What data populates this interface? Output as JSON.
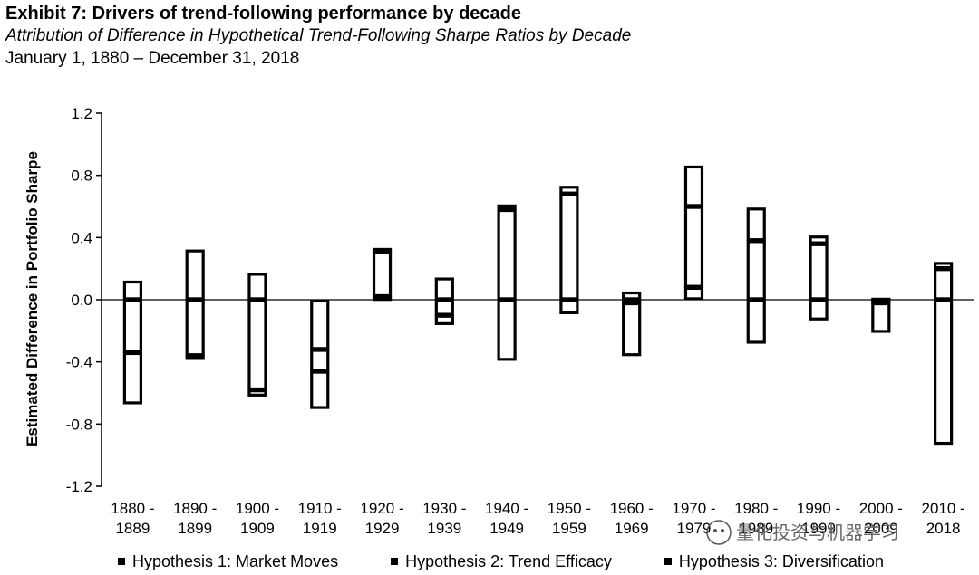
{
  "header": {
    "title": "Exhibit 7: Drivers of trend-following performance by decade",
    "subtitle": "Attribution of Difference in Hypothetical Trend-Following Sharpe Ratios by Decade",
    "date_range": "January 1, 1880 – December 31, 2018"
  },
  "chart_data": {
    "type": "bar",
    "stacked": true,
    "ylabel": "Estimated Difference in Portfolio Sharpe",
    "ylim": [
      -1.2,
      1.2
    ],
    "yticks": [
      -1.2,
      -0.8,
      -0.4,
      0.0,
      0.4,
      0.8,
      1.2
    ],
    "ytick_labels": [
      "-1.2",
      "-0.8",
      "-0.4",
      "0.0",
      "0.4",
      "0.8",
      "1.2"
    ],
    "categories": [
      [
        "1880 -",
        "1889"
      ],
      [
        "1890 -",
        "1899"
      ],
      [
        "1900 -",
        "1909"
      ],
      [
        "1910 -",
        "1919"
      ],
      [
        "1920 -",
        "1929"
      ],
      [
        "1930 -",
        "1939"
      ],
      [
        "1940 -",
        "1949"
      ],
      [
        "1950 -",
        "1959"
      ],
      [
        "1960 -",
        "1969"
      ],
      [
        "1970 -",
        "1979"
      ],
      [
        "1980 -",
        "1989"
      ],
      [
        "1990 -",
        "1999"
      ],
      [
        "2000 -",
        "2009"
      ],
      [
        "2010 -",
        "2018"
      ]
    ],
    "series": [
      {
        "name": "Hypothesis 1: Market Moves",
        "values": [
          0.12,
          -0.36,
          -0.58,
          -0.32,
          0.02,
          0.14,
          0.58,
          0.68,
          -0.02,
          0.08,
          0.38,
          0.36,
          -0.02,
          0.2
        ]
      },
      {
        "name": "Hypothesis 2: Trend Efficacy",
        "values": [
          -0.34,
          0.32,
          -0.04,
          -0.14,
          0.29,
          -0.1,
          0.03,
          0.05,
          0.05,
          0.52,
          0.21,
          0.05,
          -0.19,
          0.04
        ]
      },
      {
        "name": "Hypothesis 3: Diversification",
        "values": [
          -0.33,
          -0.02,
          0.17,
          -0.24,
          0.02,
          -0.06,
          -0.39,
          -0.09,
          -0.34,
          0.26,
          -0.28,
          -0.13,
          0.01,
          -0.93
        ]
      }
    ],
    "legend_position": "bottom",
    "grid": false
  },
  "watermark": "量化投资与机器学习"
}
